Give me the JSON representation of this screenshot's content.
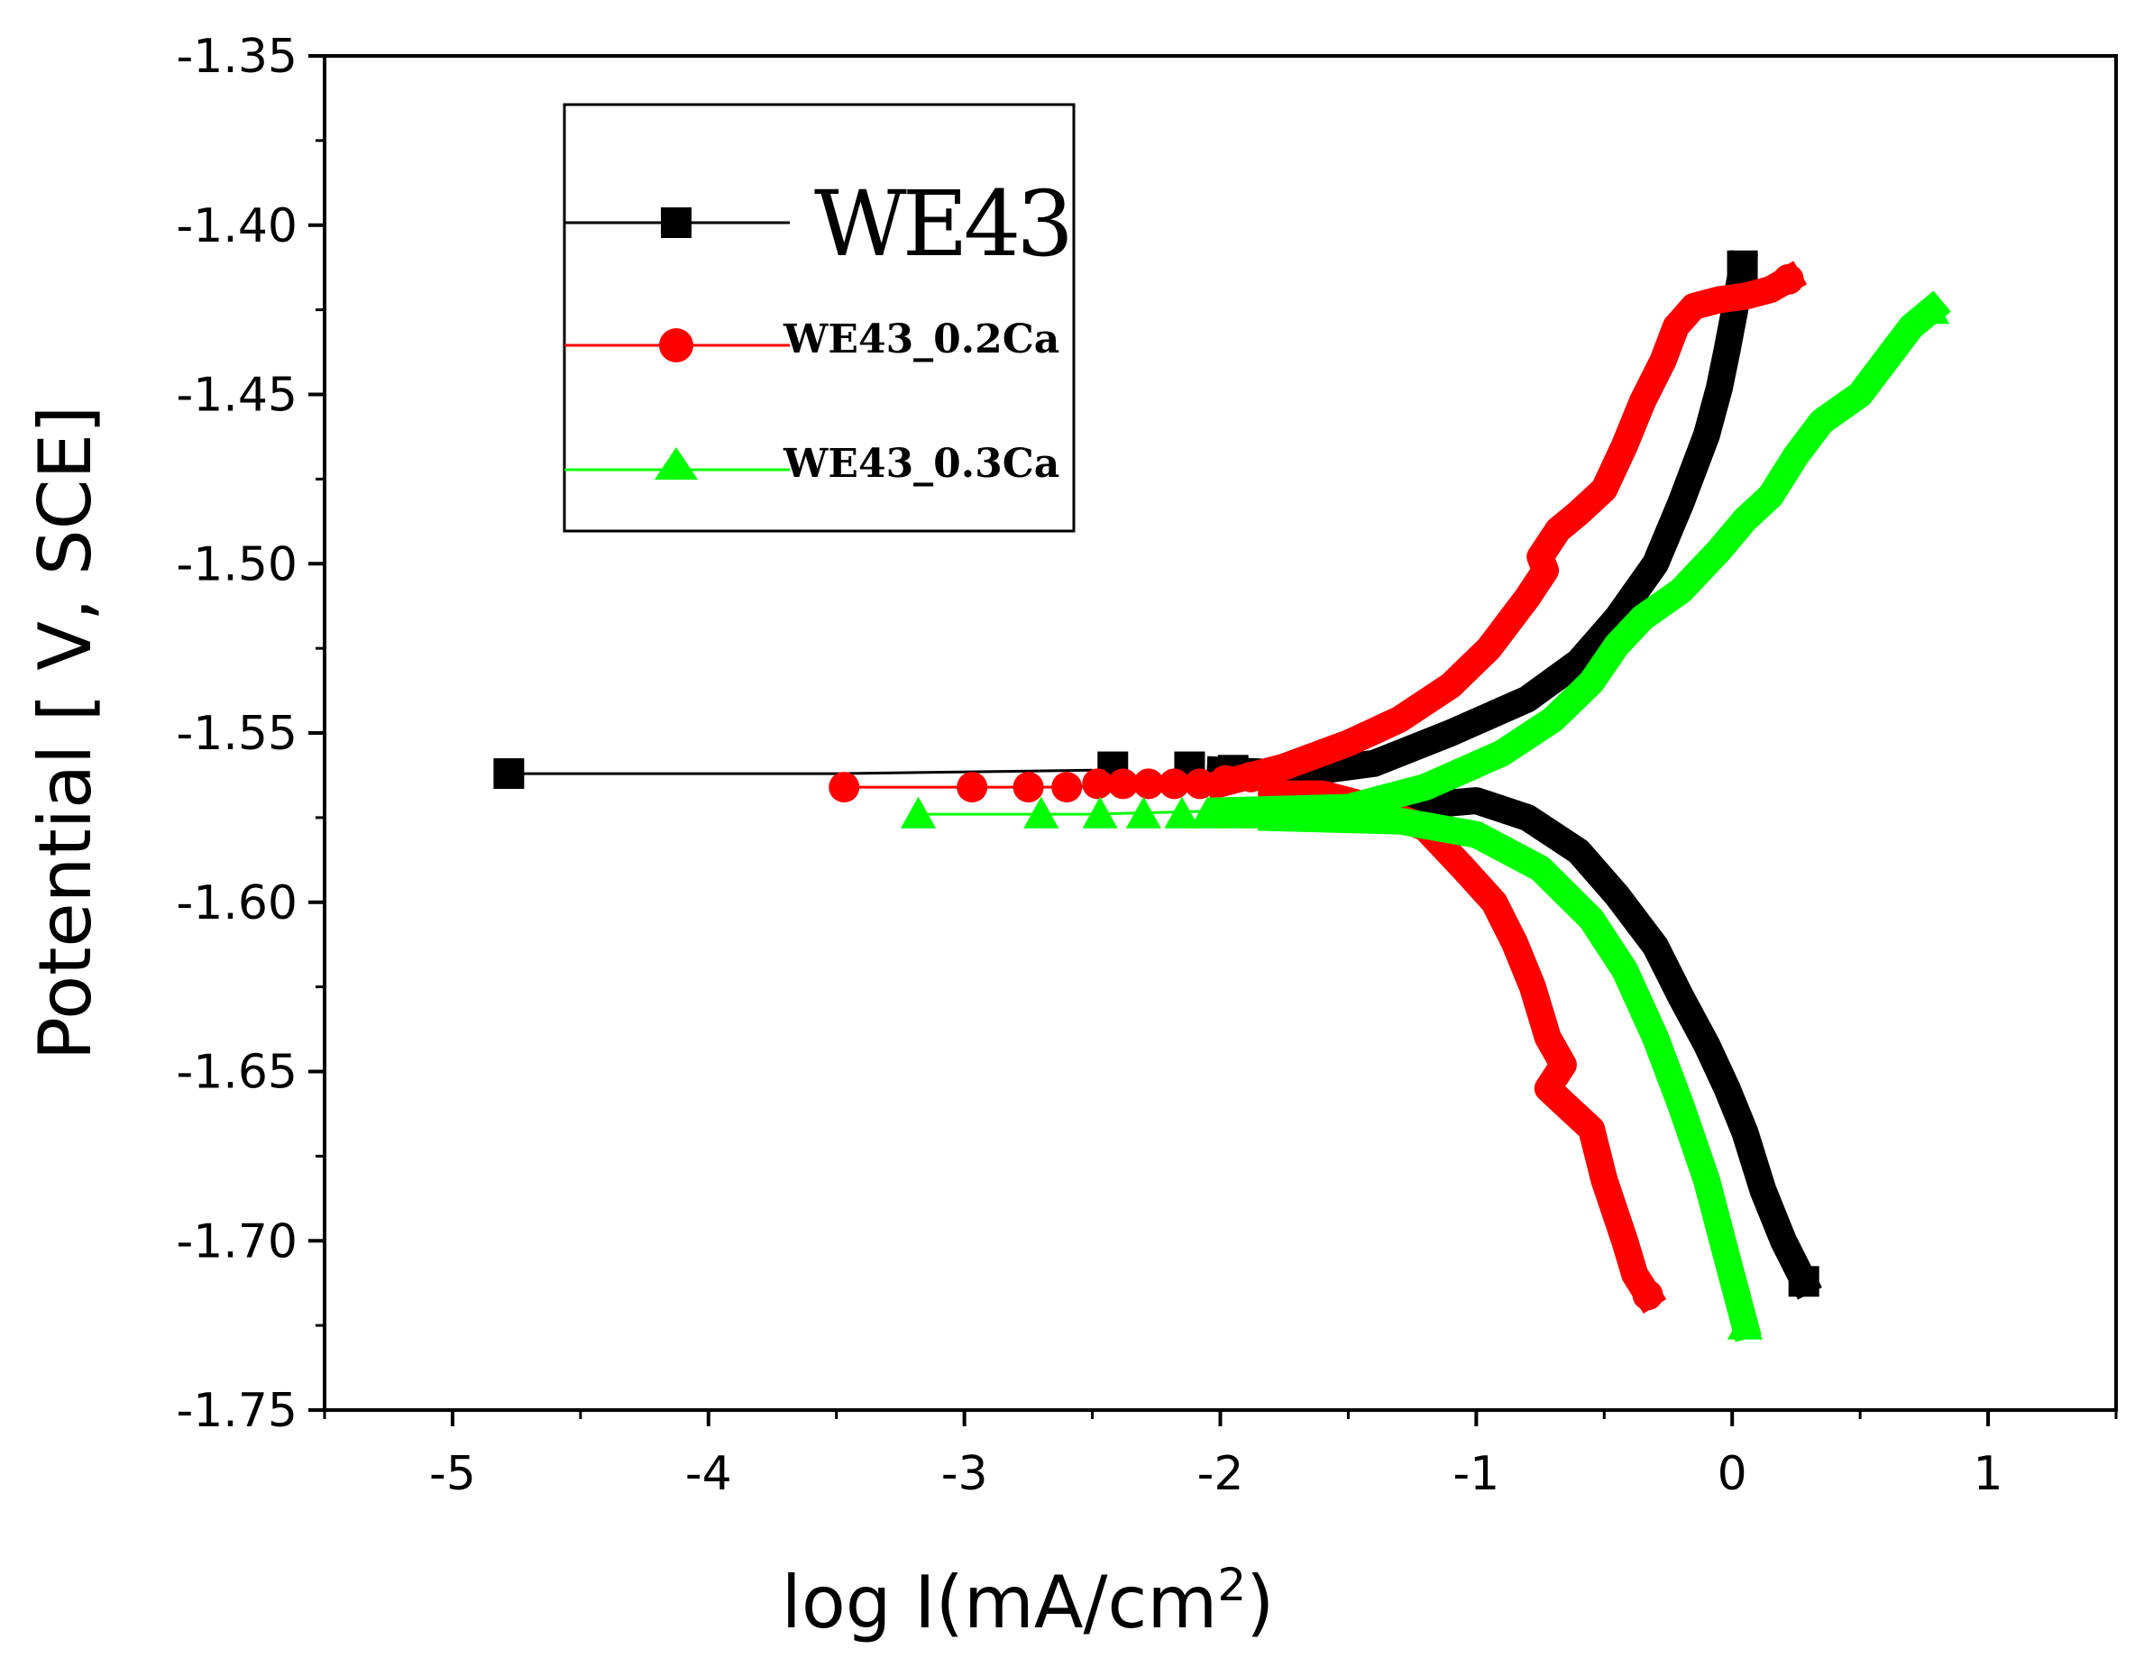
{
  "chart_data": {
    "type": "line",
    "title": "",
    "xlabel_main": "log I(mA/cm",
    "xlabel_sup": "2",
    "xlabel_close": ")",
    "ylabel": "Potential [ V, SCE]",
    "xlim": [
      -5.5,
      1.5
    ],
    "ylim": [
      -1.75,
      -1.35
    ],
    "x_ticks": [
      -5,
      -4,
      -3,
      -2,
      -1,
      0,
      1
    ],
    "x_tick_labels": [
      "-5",
      "-4",
      "-3",
      "-2",
      "-1",
      "0",
      "1"
    ],
    "y_ticks": [
      -1.35,
      -1.4,
      -1.45,
      -1.5,
      -1.55,
      -1.6,
      -1.65,
      -1.7,
      -1.75
    ],
    "y_tick_labels": [
      "-1.35",
      "-1.40",
      "-1.45",
      "-1.50",
      "-1.55",
      "-1.60",
      "-1.65",
      "-1.70",
      "-1.75"
    ],
    "legend_position": "top-left",
    "series": [
      {
        "name": "WE43",
        "color": "#000000",
        "marker": "square",
        "anodic": [
          [
            -4.78,
            -1.562
          ],
          [
            -3.5,
            -1.562
          ],
          [
            -2.5,
            -1.561
          ],
          [
            -2.0,
            -1.561
          ],
          [
            -1.7,
            -1.562
          ],
          [
            -1.4,
            -1.559
          ],
          [
            -1.1,
            -1.55
          ],
          [
            -0.8,
            -1.54
          ],
          [
            -0.6,
            -1.529
          ],
          [
            -0.45,
            -1.516
          ],
          [
            -0.3,
            -1.5
          ],
          [
            -0.2,
            -1.482
          ],
          [
            -0.1,
            -1.462
          ],
          [
            -0.05,
            -1.448
          ],
          [
            -0.02,
            -1.437
          ],
          [
            0.01,
            -1.425
          ],
          [
            0.04,
            -1.412
          ]
        ],
        "cathodic": [
          [
            -1.7,
            -1.572
          ],
          [
            -1.3,
            -1.572
          ],
          [
            -1.0,
            -1.57
          ],
          [
            -0.8,
            -1.575
          ],
          [
            -0.6,
            -1.585
          ],
          [
            -0.45,
            -1.598
          ],
          [
            -0.3,
            -1.613
          ],
          [
            -0.2,
            -1.628
          ],
          [
            -0.1,
            -1.642
          ],
          [
            -0.02,
            -1.655
          ],
          [
            0.05,
            -1.668
          ],
          [
            0.12,
            -1.685
          ],
          [
            0.2,
            -1.7
          ],
          [
            0.28,
            -1.712
          ]
        ],
        "scatter": [
          [
            -4.78,
            -1.562
          ],
          [
            -2.42,
            -1.56
          ],
          [
            -2.12,
            -1.56
          ],
          [
            -1.95,
            -1.561
          ]
        ]
      },
      {
        "name": "WE43_0.2Ca",
        "color": "#ff0000",
        "marker": "circle",
        "anodic": [
          [
            -3.47,
            -1.566
          ],
          [
            -2.6,
            -1.566
          ],
          [
            -2.0,
            -1.565
          ],
          [
            -1.75,
            -1.56
          ],
          [
            -1.5,
            -1.553
          ],
          [
            -1.3,
            -1.546
          ],
          [
            -1.1,
            -1.536
          ],
          [
            -0.95,
            -1.525
          ],
          [
            -0.8,
            -1.51
          ],
          [
            -0.73,
            -1.502
          ],
          [
            -0.75,
            -1.498
          ],
          [
            -0.68,
            -1.49
          ],
          [
            -0.6,
            -1.485
          ],
          [
            -0.5,
            -1.478
          ],
          [
            -0.42,
            -1.465
          ],
          [
            -0.35,
            -1.452
          ],
          [
            -0.27,
            -1.44
          ],
          [
            -0.22,
            -1.43
          ],
          [
            -0.15,
            -1.424
          ],
          [
            -0.05,
            -1.422
          ],
          [
            0.05,
            -1.421
          ],
          [
            0.15,
            -1.419
          ],
          [
            0.22,
            -1.416
          ]
        ],
        "cathodic": [
          [
            -1.8,
            -1.568
          ],
          [
            -1.6,
            -1.568
          ],
          [
            -1.4,
            -1.572
          ],
          [
            -1.2,
            -1.578
          ],
          [
            -1.05,
            -1.59
          ],
          [
            -0.93,
            -1.6
          ],
          [
            -0.85,
            -1.612
          ],
          [
            -0.78,
            -1.625
          ],
          [
            -0.72,
            -1.64
          ],
          [
            -0.66,
            -1.648
          ],
          [
            -0.72,
            -1.655
          ],
          [
            -0.65,
            -1.66
          ],
          [
            -0.55,
            -1.667
          ],
          [
            -0.5,
            -1.682
          ],
          [
            -0.42,
            -1.7
          ],
          [
            -0.38,
            -1.71
          ],
          [
            -0.33,
            -1.716
          ]
        ],
        "scatter": [
          [
            -3.47,
            -1.566
          ],
          [
            -2.97,
            -1.566
          ],
          [
            -2.75,
            -1.566
          ],
          [
            -2.6,
            -1.566
          ],
          [
            -2.48,
            -1.565
          ],
          [
            -2.38,
            -1.565
          ],
          [
            -2.28,
            -1.565
          ],
          [
            -2.18,
            -1.565
          ],
          [
            -2.08,
            -1.565
          ],
          [
            -1.98,
            -1.564
          ],
          [
            -1.88,
            -1.563
          ]
        ]
      },
      {
        "name": "WE43_0.3Ca",
        "color": "#00ff00",
        "marker": "triangle",
        "anodic": [
          [
            -3.18,
            -1.574
          ],
          [
            -2.5,
            -1.574
          ],
          [
            -2.0,
            -1.573
          ],
          [
            -1.5,
            -1.572
          ],
          [
            -1.2,
            -1.566
          ],
          [
            -0.9,
            -1.556
          ],
          [
            -0.7,
            -1.546
          ],
          [
            -0.55,
            -1.535
          ],
          [
            -0.45,
            -1.524
          ],
          [
            -0.35,
            -1.516
          ],
          [
            -0.2,
            -1.508
          ],
          [
            -0.05,
            -1.496
          ],
          [
            0.05,
            -1.487
          ],
          [
            0.15,
            -1.48
          ],
          [
            0.25,
            -1.468
          ],
          [
            0.35,
            -1.458
          ],
          [
            0.5,
            -1.45
          ],
          [
            0.6,
            -1.44
          ],
          [
            0.7,
            -1.43
          ],
          [
            0.78,
            -1.425
          ]
        ],
        "cathodic": [
          [
            -1.8,
            -1.575
          ],
          [
            -1.3,
            -1.576
          ],
          [
            -1.0,
            -1.58
          ],
          [
            -0.75,
            -1.59
          ],
          [
            -0.55,
            -1.605
          ],
          [
            -0.42,
            -1.62
          ],
          [
            -0.3,
            -1.64
          ],
          [
            -0.2,
            -1.66
          ],
          [
            -0.1,
            -1.682
          ],
          [
            -0.02,
            -1.705
          ],
          [
            0.05,
            -1.725
          ]
        ],
        "scatter": [
          [
            -3.18,
            -1.574
          ],
          [
            -2.7,
            -1.574
          ],
          [
            -2.47,
            -1.574
          ],
          [
            -2.3,
            -1.574
          ],
          [
            -2.15,
            -1.574
          ],
          [
            -2.05,
            -1.574
          ],
          [
            -1.95,
            -1.574
          ],
          [
            -1.85,
            -1.574
          ],
          [
            -1.75,
            -1.574
          ]
        ]
      }
    ]
  }
}
